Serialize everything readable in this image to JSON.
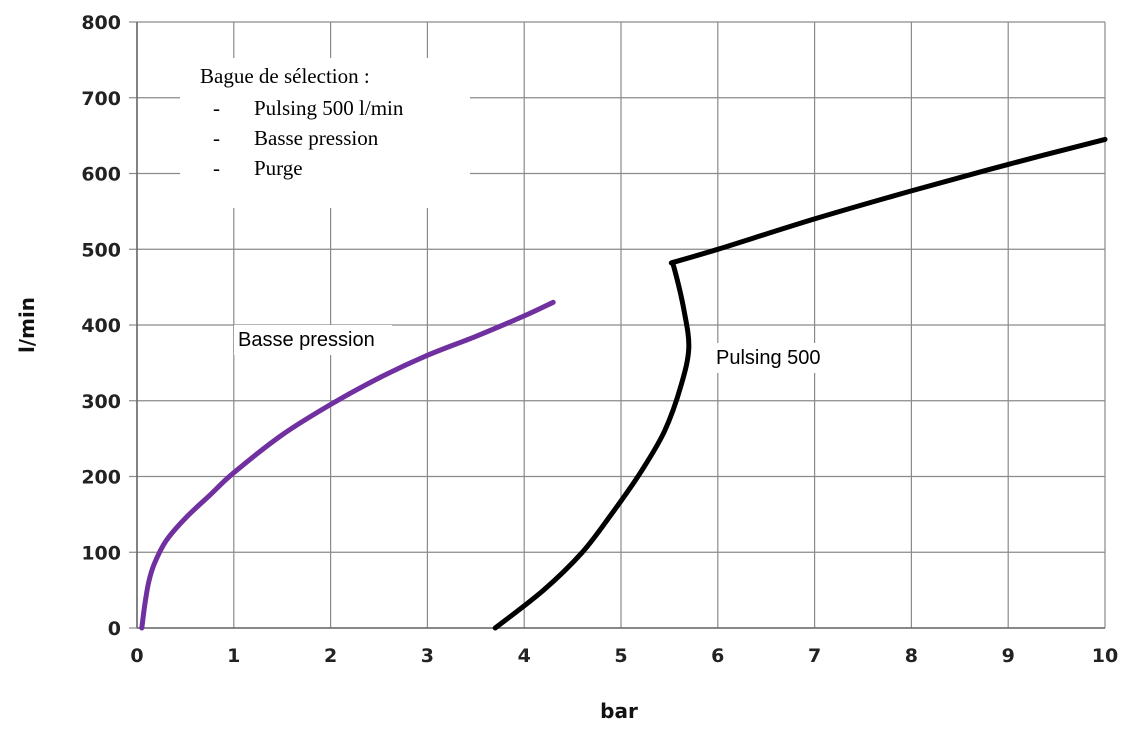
{
  "chart_data": {
    "type": "line",
    "xlabel": "bar",
    "ylabel": "l/min",
    "xlim": [
      0,
      10
    ],
    "ylim": [
      0,
      800
    ],
    "x_ticks": [
      "0",
      "1",
      "2",
      "3",
      "4",
      "5",
      "6",
      "7",
      "8",
      "9",
      "10"
    ],
    "y_ticks": [
      "0",
      "100",
      "200",
      "300",
      "400",
      "500",
      "600",
      "700",
      "800"
    ],
    "grid": true,
    "annotation": {
      "title": "Bague de sélection :",
      "items": [
        "Pulsing 500 l/min",
        "Basse pression",
        "Purge"
      ],
      "bullet": "-"
    },
    "series": [
      {
        "label": "Basse pression",
        "color": "#7030A0",
        "points": [
          [
            0.05,
            0
          ],
          [
            0.08,
            30
          ],
          [
            0.12,
            60
          ],
          [
            0.18,
            85
          ],
          [
            0.3,
            115
          ],
          [
            0.5,
            145
          ],
          [
            0.75,
            175
          ],
          [
            1.0,
            205
          ],
          [
            1.5,
            255
          ],
          [
            2.0,
            295
          ],
          [
            2.5,
            330
          ],
          [
            3.0,
            360
          ],
          [
            3.5,
            385
          ],
          [
            4.0,
            412
          ],
          [
            4.3,
            430
          ]
        ]
      },
      {
        "label": "Pulsing 500",
        "color": "#000000",
        "points": [
          [
            3.7,
            0
          ],
          [
            4.2,
            50
          ],
          [
            4.6,
            100
          ],
          [
            4.9,
            150
          ],
          [
            5.2,
            205
          ],
          [
            5.45,
            260
          ],
          [
            5.62,
            320
          ],
          [
            5.7,
            370
          ],
          [
            5.65,
            420
          ],
          [
            5.55,
            475
          ],
          [
            5.52,
            482
          ],
          [
            6.0,
            500
          ],
          [
            7.0,
            540
          ],
          [
            8.0,
            577
          ],
          [
            9.0,
            612
          ],
          [
            10.0,
            645
          ]
        ]
      }
    ]
  }
}
